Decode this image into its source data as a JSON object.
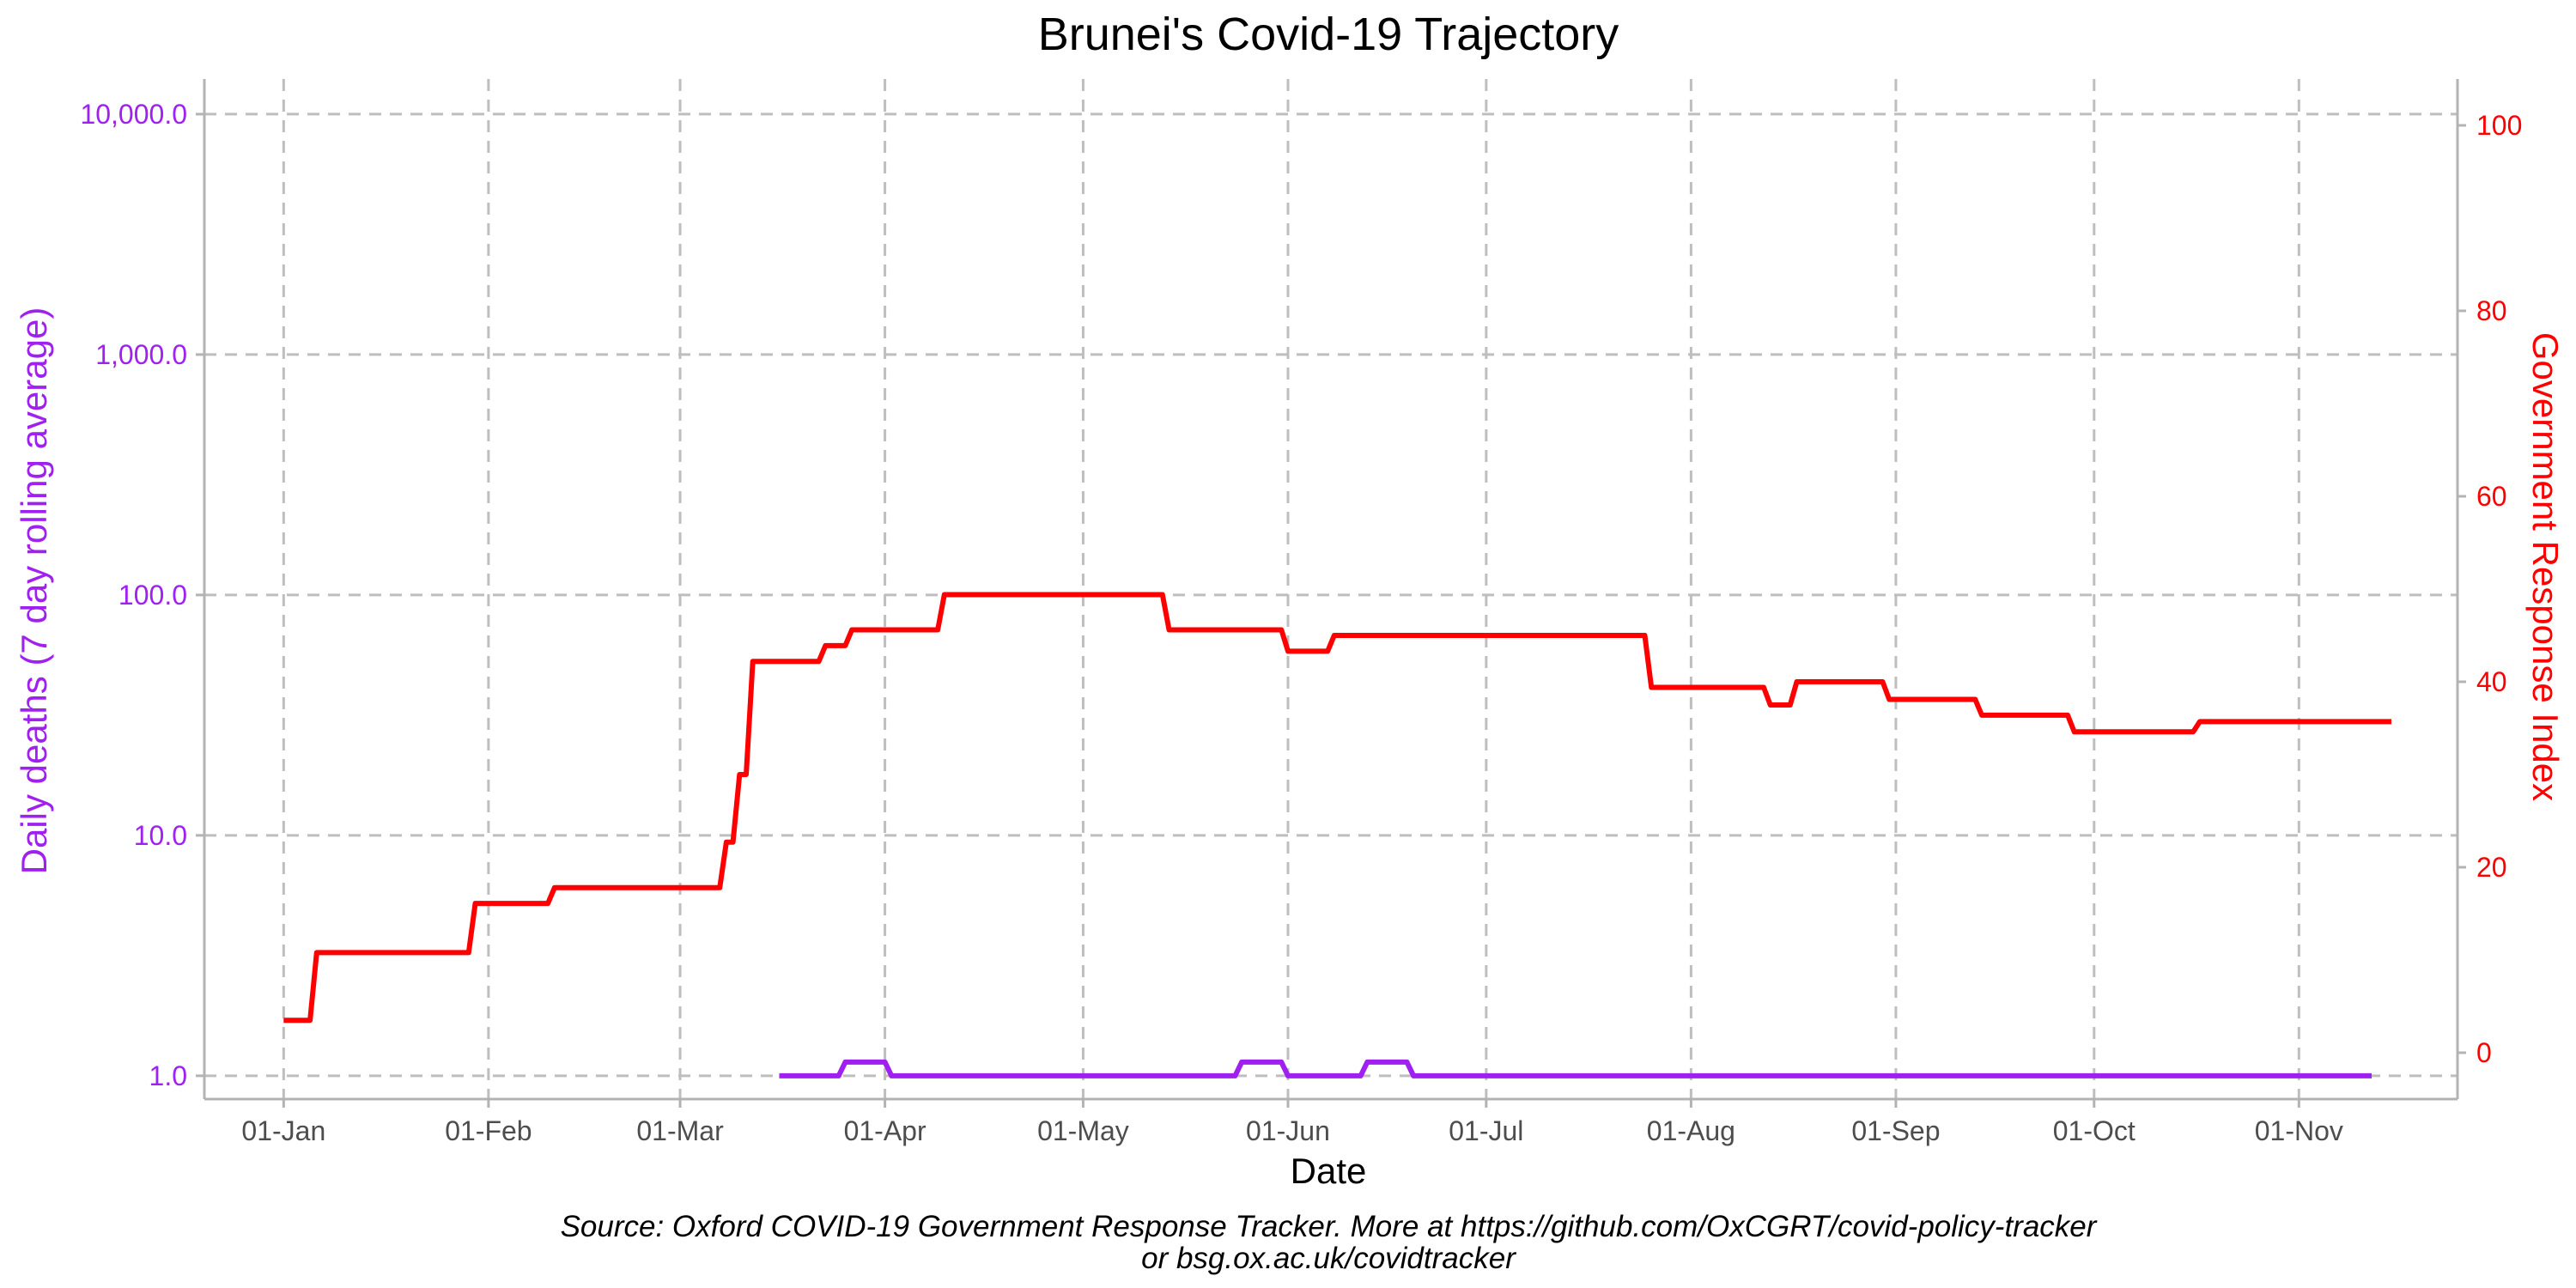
{
  "chart_data": {
    "type": "line",
    "title": "Brunei's Covid-19 Trajectory",
    "xlabel": "Date",
    "ylabel_left": "Daily deaths (7 day rolling average)",
    "ylabel_right": "Government Response Index",
    "caption_line1": "Source: Oxford COVID-19 Government Response Tracker. More at https://github.com/OxCGRT/covid-policy-tracker",
    "caption_line2": "or bsg.ox.ac.uk/covidtracker",
    "x_range": [
      "2019-12-20",
      "2020-11-25"
    ],
    "x_ticks": [
      {
        "date": "2020-01-01",
        "label": "01-Jan"
      },
      {
        "date": "2020-02-01",
        "label": "01-Feb"
      },
      {
        "date": "2020-03-01",
        "label": "01-Mar"
      },
      {
        "date": "2020-04-01",
        "label": "01-Apr"
      },
      {
        "date": "2020-05-01",
        "label": "01-May"
      },
      {
        "date": "2020-06-01",
        "label": "01-Jun"
      },
      {
        "date": "2020-07-01",
        "label": "01-Jul"
      },
      {
        "date": "2020-08-01",
        "label": "01-Aug"
      },
      {
        "date": "2020-09-01",
        "label": "01-Sep"
      },
      {
        "date": "2020-10-01",
        "label": "01-Oct"
      },
      {
        "date": "2020-11-01",
        "label": "01-Nov"
      }
    ],
    "y_left": {
      "scale": "log",
      "range": [
        0.8,
        14000
      ],
      "ticks": [
        {
          "value": 1,
          "label": "1.0"
        },
        {
          "value": 10,
          "label": "10.0"
        },
        {
          "value": 100,
          "label": "100.0"
        },
        {
          "value": 1000,
          "label": "1,000.0"
        },
        {
          "value": 10000,
          "label": "10,000.0"
        }
      ]
    },
    "y_right": {
      "scale": "linear",
      "range": [
        -5,
        105
      ],
      "ticks": [
        {
          "value": 0,
          "label": "0"
        },
        {
          "value": 20,
          "label": "20"
        },
        {
          "value": 40,
          "label": "40"
        },
        {
          "value": 60,
          "label": "60"
        },
        {
          "value": 80,
          "label": "80"
        },
        {
          "value": 100,
          "label": "100"
        }
      ]
    },
    "grid": true,
    "colors": {
      "deaths": "#a020f0",
      "gri": "#ff0000",
      "grid": "#bebebe",
      "axis": "#b3b3b3"
    },
    "series": [
      {
        "key": "deaths",
        "axis": "left",
        "color": "#a020f0",
        "points": [
          [
            "2020-03-16",
            1.0
          ],
          [
            "2020-03-25",
            1.0
          ],
          [
            "2020-03-26",
            1.14
          ],
          [
            "2020-04-01",
            1.14
          ],
          [
            "2020-04-02",
            1.0
          ],
          [
            "2020-05-24",
            1.0
          ],
          [
            "2020-05-25",
            1.14
          ],
          [
            "2020-05-31",
            1.14
          ],
          [
            "2020-06-01",
            1.0
          ],
          [
            "2020-06-12",
            1.0
          ],
          [
            "2020-06-13",
            1.14
          ],
          [
            "2020-06-19",
            1.14
          ],
          [
            "2020-06-20",
            1.0
          ],
          [
            "2020-11-12",
            1.0
          ]
        ]
      },
      {
        "key": "gri",
        "axis": "right",
        "color": "#ff0000",
        "points": [
          [
            "2020-01-01",
            3.5
          ],
          [
            "2020-01-05",
            3.5
          ],
          [
            "2020-01-06",
            10.8
          ],
          [
            "2020-01-29",
            10.8
          ],
          [
            "2020-01-30",
            16.1
          ],
          [
            "2020-02-10",
            16.1
          ],
          [
            "2020-02-11",
            17.8
          ],
          [
            "2020-03-07",
            17.8
          ],
          [
            "2020-03-08",
            22.7
          ],
          [
            "2020-03-09",
            22.7
          ],
          [
            "2020-03-10",
            30.0
          ],
          [
            "2020-03-11",
            30.0
          ],
          [
            "2020-03-12",
            42.2
          ],
          [
            "2020-03-22",
            42.2
          ],
          [
            "2020-03-23",
            43.9
          ],
          [
            "2020-03-26",
            43.9
          ],
          [
            "2020-03-27",
            45.6
          ],
          [
            "2020-04-09",
            45.6
          ],
          [
            "2020-04-10",
            49.4
          ],
          [
            "2020-05-13",
            49.4
          ],
          [
            "2020-05-14",
            45.6
          ],
          [
            "2020-05-31",
            45.6
          ],
          [
            "2020-06-01",
            43.3
          ],
          [
            "2020-06-07",
            43.3
          ],
          [
            "2020-06-08",
            45.0
          ],
          [
            "2020-07-25",
            45.0
          ],
          [
            "2020-07-26",
            39.4
          ],
          [
            "2020-08-12",
            39.4
          ],
          [
            "2020-08-13",
            37.5
          ],
          [
            "2020-08-16",
            37.5
          ],
          [
            "2020-08-17",
            40.0
          ],
          [
            "2020-08-30",
            40.0
          ],
          [
            "2020-08-31",
            38.1
          ],
          [
            "2020-09-13",
            38.1
          ],
          [
            "2020-09-14",
            36.4
          ],
          [
            "2020-09-27",
            36.4
          ],
          [
            "2020-09-28",
            34.6
          ],
          [
            "2020-10-16",
            34.6
          ],
          [
            "2020-10-17",
            35.7
          ],
          [
            "2020-11-15",
            35.7
          ]
        ]
      }
    ]
  }
}
